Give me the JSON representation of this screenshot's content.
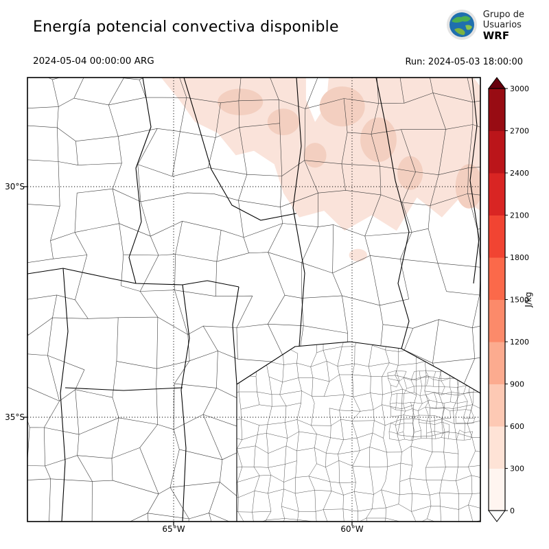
{
  "header": {
    "title": "Energía potencial convectiva disponible",
    "logo": {
      "line1": "Grupo de",
      "line2": "Usuarios",
      "line3": "WRF"
    }
  },
  "subheader": {
    "valid_time": "2024-05-04 00:00:00 ARG",
    "run": "Run: 2024-05-03 18:00:00"
  },
  "axes": {
    "y_ticks": [
      "30°S",
      "35°S"
    ],
    "x_ticks": [
      "65°W",
      "60°W"
    ]
  },
  "colorbar": {
    "unit": "J/kg",
    "min": 0,
    "max": 3000,
    "step": 300,
    "tick_labels": [
      "0",
      "300",
      "600",
      "900",
      "1200",
      "1500",
      "1800",
      "2100",
      "2400",
      "2700",
      "3000"
    ],
    "segment_colors": [
      "#fff5f0",
      "#fee3d6",
      "#fdc9b4",
      "#fcab8f",
      "#fc8a6a",
      "#fb694a",
      "#f14432",
      "#d92523",
      "#bb151a",
      "#980c13"
    ],
    "over_color": "#67000d",
    "under_color": "#ffffff"
  },
  "chart_data": {
    "type": "heatmap",
    "title": "Energía potencial convectiva disponible",
    "variable": "CAPE (convective available potential energy)",
    "units": "J/kg",
    "valid_time": "2024-05-04 00:00:00 ARG",
    "run_time": "Run: 2024-05-03 18:00:00",
    "colorbar_range": [
      0,
      3000
    ],
    "colorbar_ticks": [
      0,
      300,
      600,
      900,
      1200,
      1500,
      1800,
      2100,
      2400,
      2700,
      3000
    ],
    "lat_gridlines": [
      "30°S",
      "35°S"
    ],
    "lon_gridlines": [
      "65°W",
      "60°W"
    ],
    "field_summary": [
      {
        "region": "north / northeast of domain (mostly north of 30°S)",
        "cape_jkg": "100-500"
      },
      {
        "region": "isolated small spot near 31.5°S 61°W",
        "cape_jkg": "~300"
      },
      {
        "region": "remainder of domain (center, west, south, Buenos Aires)",
        "cape_jkg": "0"
      }
    ],
    "shaded_patches": [
      {
        "shape": "polygon",
        "value": "~300 J/kg",
        "color": "#fae3da",
        "points": [
          [
            0.295,
            0
          ],
          [
            0.985,
            0
          ],
          [
            1,
            0.02
          ],
          [
            1,
            0.3
          ],
          [
            0.955,
            0.27
          ],
          [
            0.915,
            0.315
          ],
          [
            0.86,
            0.27
          ],
          [
            0.815,
            0.345
          ],
          [
            0.76,
            0.31
          ],
          [
            0.7,
            0.345
          ],
          [
            0.655,
            0.3
          ],
          [
            0.6,
            0.315
          ],
          [
            0.565,
            0.26
          ],
          [
            0.545,
            0.195
          ],
          [
            0.5,
            0.165
          ],
          [
            0.46,
            0.175
          ],
          [
            0.42,
            0.125
          ],
          [
            0.37,
            0.1
          ],
          [
            0.335,
            0.05
          ]
        ]
      },
      {
        "shape": "polygon",
        "value": "0 J/kg",
        "color": "#ffffff",
        "points": [
          [
            0.615,
            0
          ],
          [
            0.665,
            0
          ],
          [
            0.66,
            0.06
          ],
          [
            0.635,
            0.1
          ],
          [
            0.615,
            0.05
          ]
        ]
      },
      {
        "shape": "ellipse",
        "value": "~600 J/kg",
        "color": "#f3cfc0",
        "cx": 0.47,
        "cy": 0.055,
        "rx": 0.05,
        "ry": 0.03
      },
      {
        "shape": "ellipse",
        "value": "~600 J/kg",
        "color": "#f3cfc0",
        "cx": 0.565,
        "cy": 0.1,
        "rx": 0.035,
        "ry": 0.03
      },
      {
        "shape": "ellipse",
        "value": "~600 J/kg",
        "color": "#f3cfc0",
        "cx": 0.695,
        "cy": 0.065,
        "rx": 0.05,
        "ry": 0.045
      },
      {
        "shape": "ellipse",
        "value": "~600 J/kg",
        "color": "#f3cfc0",
        "cx": 0.775,
        "cy": 0.14,
        "rx": 0.04,
        "ry": 0.05
      },
      {
        "shape": "ellipse",
        "value": "~600 J/kg",
        "color": "#f3cfc0",
        "cx": 0.845,
        "cy": 0.215,
        "rx": 0.028,
        "ry": 0.038
      },
      {
        "shape": "ellipse",
        "value": "~600 J/kg",
        "color": "#f3cfc0",
        "cx": 0.975,
        "cy": 0.245,
        "rx": 0.03,
        "ry": 0.05
      },
      {
        "shape": "ellipse",
        "value": "~600 J/kg",
        "color": "#f3cfc0",
        "cx": 0.635,
        "cy": 0.175,
        "rx": 0.025,
        "ry": 0.028
      },
      {
        "shape": "ellipse",
        "value": "~300 J/kg",
        "color": "#fae3da",
        "cx": 0.73,
        "cy": 0.4,
        "rx": 0.02,
        "ry": 0.014
      }
    ]
  }
}
